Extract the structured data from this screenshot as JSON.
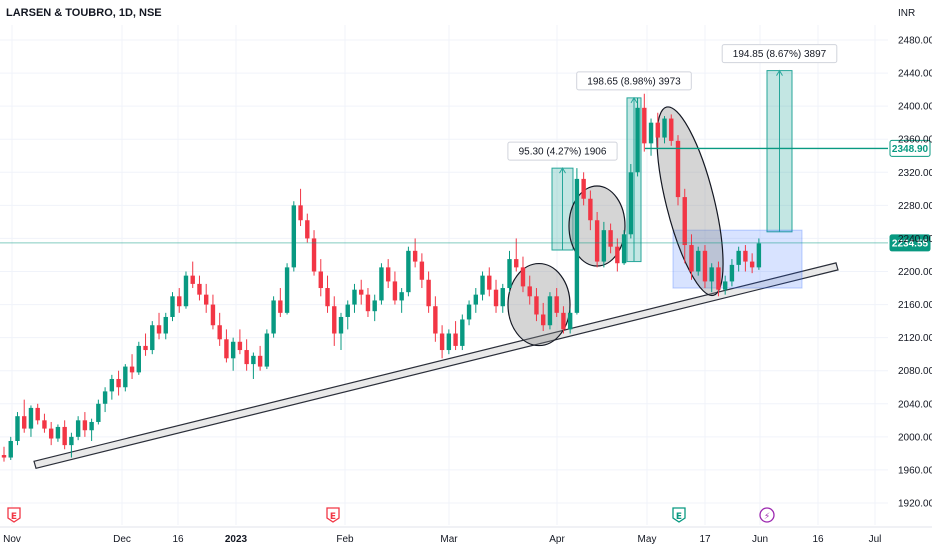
{
  "chart_data": {
    "type": "candlestick",
    "title": "LARSEN & TOUBRO, 1D, NSE",
    "currency_label": "INR",
    "ylim": [
      1900,
      2490
    ],
    "y_ticks": [
      "2480.00",
      "2440.00",
      "2400.00",
      "2360.00",
      "2320.00",
      "2280.00",
      "2240.00",
      "2200.00",
      "2160.00",
      "2120.00",
      "2080.00",
      "2040.00",
      "2000.00",
      "1960.00",
      "1920.00"
    ],
    "x_ticks": [
      "Nov",
      "Dec",
      "16",
      "2023",
      "Feb",
      "Mar",
      "Apr",
      "May",
      "17",
      "Jun",
      "16",
      "Jul"
    ],
    "price_badges": [
      {
        "label": "2348.90",
        "value": 2348.9,
        "color": "#089981"
      },
      {
        "label": "2234.55",
        "value": 2234.55,
        "color": "#089981"
      }
    ],
    "measure_annotations": [
      {
        "label": "95.30 (4.27%) 1906",
        "from": 2226,
        "to": 2325
      },
      {
        "label": "198.65 (8.98%) 3973",
        "from": 2212,
        "to": 2410
      },
      {
        "label": "194.85 (8.67%) 3897",
        "from": 2248,
        "to": 2443
      }
    ],
    "trendline": {
      "from": 1968,
      "to": 2208
    },
    "colors": {
      "up": "#089981",
      "down": "#f23645",
      "measure": "#26a69a",
      "box": "#2962ff"
    },
    "event_markers": [
      "E",
      "E",
      "E",
      "⚡"
    ],
    "candles": [
      [
        1978,
        1988,
        1970,
        1975
      ],
      [
        1975,
        2000,
        1972,
        1995
      ],
      [
        1995,
        2030,
        1990,
        2025
      ],
      [
        2025,
        2045,
        2005,
        2010
      ],
      [
        2010,
        2038,
        2000,
        2035
      ],
      [
        2035,
        2040,
        2015,
        2020
      ],
      [
        2020,
        2028,
        2005,
        2010
      ],
      [
        2010,
        2018,
        1990,
        1998
      ],
      [
        1998,
        2015,
        1994,
        2012
      ],
      [
        2012,
        2020,
        1985,
        1990
      ],
      [
        1990,
        2005,
        1975,
        2000
      ],
      [
        2000,
        2025,
        1996,
        2020
      ],
      [
        2020,
        2030,
        2000,
        2008
      ],
      [
        2008,
        2022,
        1995,
        2018
      ],
      [
        2018,
        2045,
        2015,
        2040
      ],
      [
        2040,
        2060,
        2030,
        2055
      ],
      [
        2055,
        2075,
        2045,
        2070
      ],
      [
        2070,
        2080,
        2050,
        2060
      ],
      [
        2060,
        2088,
        2055,
        2085
      ],
      [
        2085,
        2100,
        2070,
        2078
      ],
      [
        2078,
        2115,
        2075,
        2110
      ],
      [
        2110,
        2125,
        2098,
        2105
      ],
      [
        2105,
        2140,
        2100,
        2135
      ],
      [
        2135,
        2150,
        2118,
        2125
      ],
      [
        2125,
        2150,
        2118,
        2145
      ],
      [
        2145,
        2175,
        2140,
        2170
      ],
      [
        2170,
        2180,
        2150,
        2158
      ],
      [
        2158,
        2200,
        2155,
        2195
      ],
      [
        2195,
        2212,
        2180,
        2185
      ],
      [
        2185,
        2195,
        2165,
        2172
      ],
      [
        2172,
        2185,
        2150,
        2160
      ],
      [
        2160,
        2172,
        2130,
        2135
      ],
      [
        2135,
        2150,
        2110,
        2118
      ],
      [
        2118,
        2130,
        2090,
        2095
      ],
      [
        2095,
        2120,
        2080,
        2115
      ],
      [
        2115,
        2130,
        2100,
        2105
      ],
      [
        2105,
        2118,
        2080,
        2088
      ],
      [
        2088,
        2102,
        2070,
        2098
      ],
      [
        2098,
        2110,
        2080,
        2085
      ],
      [
        2085,
        2130,
        2082,
        2125
      ],
      [
        2125,
        2170,
        2120,
        2165
      ],
      [
        2165,
        2180,
        2145,
        2150
      ],
      [
        2150,
        2210,
        2148,
        2205
      ],
      [
        2205,
        2285,
        2200,
        2280
      ],
      [
        2280,
        2300,
        2255,
        2262
      ],
      [
        2262,
        2270,
        2235,
        2240
      ],
      [
        2240,
        2250,
        2195,
        2200
      ],
      [
        2200,
        2215,
        2170,
        2180
      ],
      [
        2180,
        2195,
        2150,
        2158
      ],
      [
        2158,
        2170,
        2110,
        2125
      ],
      [
        2125,
        2150,
        2105,
        2145
      ],
      [
        2145,
        2165,
        2130,
        2160
      ],
      [
        2160,
        2185,
        2150,
        2178
      ],
      [
        2178,
        2190,
        2160,
        2172
      ],
      [
        2172,
        2180,
        2145,
        2152
      ],
      [
        2152,
        2172,
        2140,
        2165
      ],
      [
        2165,
        2210,
        2160,
        2205
      ],
      [
        2205,
        2215,
        2180,
        2188
      ],
      [
        2188,
        2200,
        2160,
        2165
      ],
      [
        2165,
        2180,
        2150,
        2175
      ],
      [
        2175,
        2230,
        2170,
        2225
      ],
      [
        2225,
        2240,
        2205,
        2212
      ],
      [
        2212,
        2222,
        2180,
        2190
      ],
      [
        2190,
        2200,
        2150,
        2158
      ],
      [
        2158,
        2170,
        2115,
        2125
      ],
      [
        2125,
        2135,
        2095,
        2105
      ],
      [
        2105,
        2130,
        2100,
        2125
      ],
      [
        2125,
        2140,
        2105,
        2110
      ],
      [
        2110,
        2148,
        2105,
        2142
      ],
      [
        2142,
        2165,
        2135,
        2160
      ],
      [
        2160,
        2180,
        2150,
        2172
      ],
      [
        2172,
        2200,
        2165,
        2195
      ],
      [
        2195,
        2205,
        2170,
        2178
      ],
      [
        2178,
        2190,
        2150,
        2158
      ],
      [
        2158,
        2185,
        2150,
        2180
      ],
      [
        2180,
        2225,
        2175,
        2215
      ],
      [
        2215,
        2240,
        2200,
        2205
      ],
      [
        2205,
        2218,
        2175,
        2182
      ],
      [
        2182,
        2195,
        2160,
        2170
      ],
      [
        2170,
        2180,
        2140,
        2148
      ],
      [
        2148,
        2162,
        2128,
        2135
      ],
      [
        2135,
        2175,
        2130,
        2170
      ],
      [
        2170,
        2180,
        2145,
        2150
      ],
      [
        2150,
        2158,
        2125,
        2130
      ],
      [
        2130,
        2155,
        2125,
        2150
      ],
      [
        2150,
        2325,
        2148,
        2312
      ],
      [
        2312,
        2320,
        2280,
        2288
      ],
      [
        2288,
        2298,
        2250,
        2262
      ],
      [
        2262,
        2272,
        2205,
        2212
      ],
      [
        2212,
        2260,
        2205,
        2250
      ],
      [
        2250,
        2258,
        2222,
        2230
      ],
      [
        2230,
        2240,
        2200,
        2210
      ],
      [
        2210,
        2250,
        2208,
        2245
      ],
      [
        2245,
        2330,
        2240,
        2320
      ],
      [
        2320,
        2410,
        2315,
        2398
      ],
      [
        2398,
        2415,
        2345,
        2355
      ],
      [
        2355,
        2385,
        2340,
        2380
      ],
      [
        2380,
        2392,
        2350,
        2362
      ],
      [
        2362,
        2388,
        2355,
        2385
      ],
      [
        2385,
        2390,
        2352,
        2358
      ],
      [
        2358,
        2365,
        2280,
        2290
      ],
      [
        2290,
        2300,
        2210,
        2232
      ],
      [
        2232,
        2245,
        2190,
        2200
      ],
      [
        2200,
        2230,
        2195,
        2225
      ],
      [
        2225,
        2232,
        2180,
        2188
      ],
      [
        2188,
        2210,
        2175,
        2205
      ],
      [
        2205,
        2212,
        2170,
        2178
      ],
      [
        2178,
        2195,
        2172,
        2188
      ],
      [
        2188,
        2215,
        2182,
        2208
      ],
      [
        2208,
        2230,
        2200,
        2225
      ],
      [
        2225,
        2232,
        2200,
        2212
      ],
      [
        2212,
        2222,
        2198,
        2205
      ],
      [
        2205,
        2240,
        2202,
        2234
      ]
    ]
  }
}
